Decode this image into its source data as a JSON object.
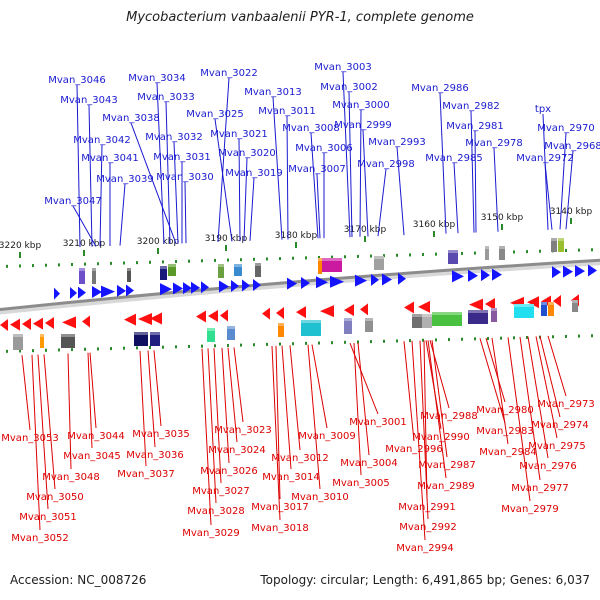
{
  "title": "Mycobacterium vanbaalenii PYR-1, complete genome",
  "footer": {
    "accession": "Accession: NC_008726",
    "topology": "Topology: circular; Length: 6,491,865 bp; Genes: 6,037"
  },
  "colors": {
    "forward_label": "#1a1ad0",
    "reverse_label": "#dd0000",
    "forward_arrow": "#1414ff",
    "reverse_arrow": "#ff1010",
    "tick": "#2a8a2a",
    "track": "#8c8c8c"
  },
  "scale_labels": [
    "3220 kbp",
    "3210 kbp",
    "3200 kbp",
    "3190 kbp",
    "3180 kbp",
    "3170 kbp",
    "3160 kbp",
    "3150 kbp",
    "3140 kbp"
  ],
  "forward_genes": [
    "Mvan_3046",
    "Mvan_3043",
    "Mvan_3042",
    "Mvan_3041",
    "Mvan_3039",
    "Mvan_3047",
    "Mvan_3034",
    "Mvan_3033",
    "Mvan_3038",
    "Mvan_3032",
    "Mvan_3031",
    "Mvan_3030",
    "Mvan_3022",
    "Mvan_3025",
    "Mvan_3021",
    "Mvan_3020",
    "Mvan_3019",
    "Mvan_3013",
    "Mvan_3011",
    "Mvan_3008",
    "Mvan_3006",
    "Mvan_3007",
    "Mvan_3003",
    "Mvan_3002",
    "Mvan_3000",
    "Mvan_2999",
    "Mvan_2998",
    "Mvan_2993",
    "Mvan_2986",
    "Mvan_2985",
    "Mvan_2982",
    "Mvan_2981",
    "Mvan_2978",
    "tpx",
    "Mvan_2970",
    "Mvan_2968",
    "Mvan_2972"
  ],
  "reverse_genes": [
    "Mvan_3053",
    "Mvan_3044",
    "Mvan_3045",
    "Mvan_3048",
    "Mvan_3050",
    "Mvan_3051",
    "Mvan_3052",
    "Mvan_3035",
    "Mvan_3036",
    "Mvan_3037",
    "Mvan_3023",
    "Mvan_3024",
    "Mvan_3026",
    "Mvan_3027",
    "Mvan_3028",
    "Mvan_3029",
    "Mvan_3012",
    "Mvan_3014",
    "Mvan_3017",
    "Mvan_3018",
    "Mvan_3009",
    "Mvan_3010",
    "Mvan_3001",
    "Mvan_3004",
    "Mvan_3005",
    "Mvan_2988",
    "Mvan_2990",
    "Mvan_2996",
    "Mvan_2987",
    "Mvan_2989",
    "Mvan_2991",
    "Mvan_2992",
    "Mvan_2994",
    "Mvan_2980",
    "Mvan_2983",
    "Mvan_2984",
    "Mvan_2973",
    "Mvan_2974",
    "Mvan_2975",
    "Mvan_2976",
    "Mvan_2977",
    "Mvan_2979"
  ]
}
